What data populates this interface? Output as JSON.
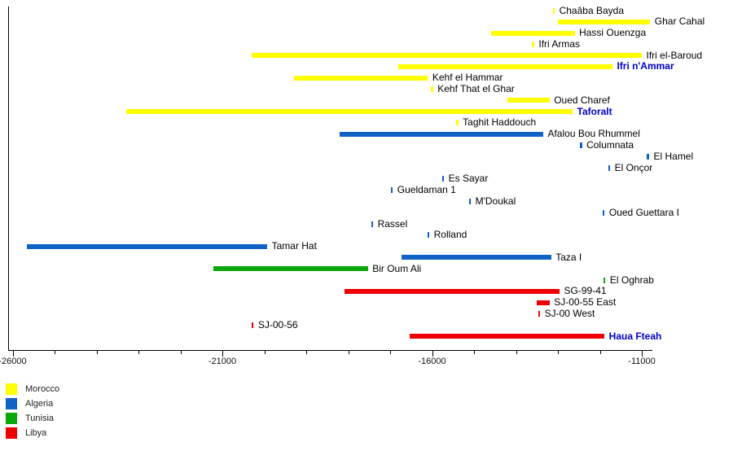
{
  "colors": {
    "Morocco": "#FFFF00",
    "Algeria": "#1063C5",
    "Tunisia": "#0BA80B",
    "Libya": "#EE0000",
    "highlight_label": "#0000CC",
    "axis": "#000000"
  },
  "chart_data": {
    "type": "bar",
    "subtype": "horizontal-date-range-timeline",
    "title": "",
    "xlabel": "",
    "ylabel": "",
    "grid": false,
    "x_axis": {
      "min": -26100,
      "max": -10700,
      "minor_tick_step": 1000,
      "major_ticks": [
        -26000,
        -21000,
        -16000,
        -11000
      ],
      "tick_labels": [
        "-26000",
        "-21000",
        "-16000",
        "-11000"
      ]
    },
    "legend_position": "bottom-left",
    "legend": [
      {
        "label": "Morocco",
        "color": "#FFFF00"
      },
      {
        "label": "Algeria",
        "color": "#1063C5"
      },
      {
        "label": "Tunisia",
        "color": "#0BA80B"
      },
      {
        "label": "Libya",
        "color": "#EE0000"
      }
    ],
    "sites": [
      {
        "name": "Chaâba Bayda",
        "country": "Morocco",
        "start": -13130,
        "end": -13070,
        "highlight": false
      },
      {
        "name": "Ghar Cahal",
        "country": "Morocco",
        "start": -13000,
        "end": -10800,
        "highlight": false
      },
      {
        "name": "Hassi Ouenzga",
        "country": "Morocco",
        "start": -14600,
        "end": -12600,
        "highlight": false
      },
      {
        "name": "Ifri Armas",
        "country": "Morocco",
        "start": -13620,
        "end": -13560,
        "highlight": false
      },
      {
        "name": "Ifri el-Baroud",
        "country": "Morocco",
        "start": -20300,
        "end": -11000,
        "highlight": false
      },
      {
        "name": "Ifri n'Ammar",
        "country": "Morocco",
        "start": -16800,
        "end": -11700,
        "highlight": true
      },
      {
        "name": "Kehf el Hammar",
        "country": "Morocco",
        "start": -19300,
        "end": -16100,
        "highlight": false
      },
      {
        "name": "Kehf That el Ghar",
        "country": "Morocco",
        "start": -16030,
        "end": -15970,
        "highlight": false
      },
      {
        "name": "Oued Charef",
        "country": "Morocco",
        "start": -14200,
        "end": -13200,
        "highlight": false
      },
      {
        "name": "Taforalt",
        "country": "Morocco",
        "start": -23300,
        "end": -12650,
        "highlight": true
      },
      {
        "name": "Taghit Haddouch",
        "country": "Morocco",
        "start": -15430,
        "end": -15370,
        "highlight": false
      },
      {
        "name": "Afalou Bou Rhummel",
        "country": "Algeria",
        "start": -18200,
        "end": -13350,
        "highlight": false
      },
      {
        "name": "Columnata",
        "country": "Algeria",
        "start": -12480,
        "end": -12420,
        "highlight": false
      },
      {
        "name": "El Hamel",
        "country": "Algeria",
        "start": -10880,
        "end": -10820,
        "highlight": false
      },
      {
        "name": "El Onçor",
        "country": "Algeria",
        "start": -11810,
        "end": -11750,
        "highlight": false
      },
      {
        "name": "Es Sayar",
        "country": "Algeria",
        "start": -15770,
        "end": -15710,
        "highlight": false
      },
      {
        "name": "Gueldaman 1",
        "country": "Algeria",
        "start": -16990,
        "end": -16930,
        "highlight": false
      },
      {
        "name": "M'Doukal",
        "country": "Algeria",
        "start": -15130,
        "end": -15070,
        "highlight": false
      },
      {
        "name": "Oued Guettara I",
        "country": "Algeria",
        "start": -11940,
        "end": -11880,
        "highlight": false
      },
      {
        "name": "Rassel",
        "country": "Algeria",
        "start": -17460,
        "end": -17400,
        "highlight": false
      },
      {
        "name": "Rolland",
        "country": "Algeria",
        "start": -16120,
        "end": -16060,
        "highlight": false
      },
      {
        "name": "Tamar Hat",
        "country": "Algeria",
        "start": -25660,
        "end": -19930,
        "highlight": false
      },
      {
        "name": "Taza I",
        "country": "Algeria",
        "start": -16730,
        "end": -13160,
        "highlight": false
      },
      {
        "name": "Bir Oum Ali",
        "country": "Tunisia",
        "start": -21210,
        "end": -17530,
        "highlight": false
      },
      {
        "name": "El Oghrab",
        "country": "Tunisia",
        "start": -11920,
        "end": -11860,
        "highlight": false
      },
      {
        "name": "SG-99-41",
        "country": "Libya",
        "start": -18090,
        "end": -12960,
        "highlight": false
      },
      {
        "name": "SJ-00-55 East",
        "country": "Libya",
        "start": -13500,
        "end": -13200,
        "highlight": false
      },
      {
        "name": "SJ-00 West",
        "country": "Libya",
        "start": -13480,
        "end": -13420,
        "highlight": false
      },
      {
        "name": "SJ-00-56",
        "country": "Libya",
        "start": -20310,
        "end": -20250,
        "highlight": false
      },
      {
        "name": "Haua Fteah",
        "country": "Libya",
        "start": -16530,
        "end": -11890,
        "highlight": true
      }
    ]
  }
}
